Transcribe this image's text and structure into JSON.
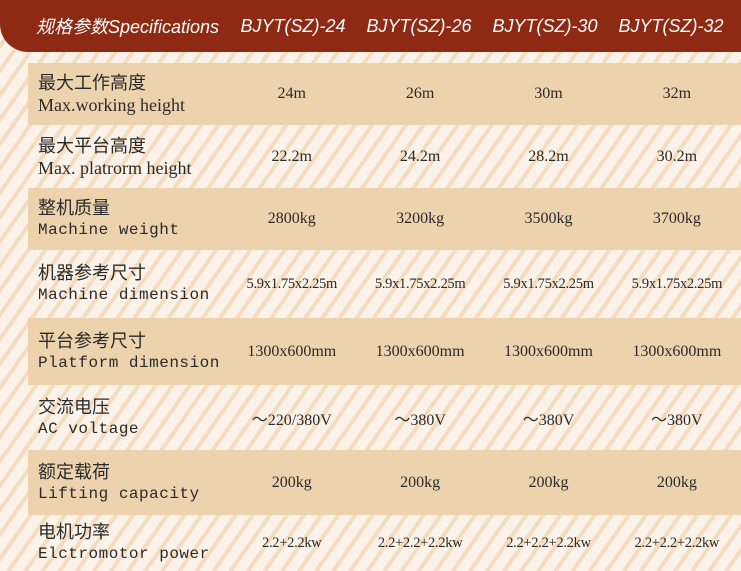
{
  "header": {
    "title": "规格参数Specifications",
    "models": [
      "BJYT(SZ)-24",
      "BJYT(SZ)-26",
      "BJYT(SZ)-30",
      "BJYT(SZ)-32"
    ]
  },
  "colors": {
    "header": "#8e2a14",
    "band": "#edd3ad"
  },
  "rows": [
    {
      "cn": "最大工作高度",
      "en": "Max.working height",
      "values": [
        "24m",
        "26m",
        "30m",
        "32m"
      ]
    },
    {
      "cn": "最大平台高度",
      "en": "Max. platrorm height",
      "values": [
        "22.2m",
        "24.2m",
        "28.2m",
        "30.2m"
      ]
    },
    {
      "cn": "整机质量",
      "en": "Machine weight",
      "values": [
        "2800kg",
        "3200kg",
        "3500kg",
        "3700kg"
      ]
    },
    {
      "cn": "机器参考尺寸",
      "en": "Machine dimension",
      "values": [
        "5.9x1.75x2.25m",
        "5.9x1.75x2.25m",
        "5.9x1.75x2.25m",
        "5.9x1.75x2.25m"
      ]
    },
    {
      "cn": "平台参考尺寸",
      "en": "Platform dimension",
      "values": [
        "1300x600mm",
        "1300x600mm",
        "1300x600mm",
        "1300x600mm"
      ]
    },
    {
      "cn": "交流电压",
      "en": "AC voltage",
      "values": [
        "～220/380V",
        "～380V",
        "～380V",
        "～380V"
      ]
    },
    {
      "cn": "额定载荷",
      "en": "Lifting capacity",
      "values": [
        "200kg",
        "200kg",
        "200kg",
        "200kg"
      ]
    },
    {
      "cn": "电机功率",
      "en": "Elctromotor power",
      "values": [
        "2.2+2.2kw",
        "2.2+2.2+2.2kw",
        "2.2+2.2+2.2kw",
        "2.2+2.2+2.2kw"
      ]
    }
  ]
}
